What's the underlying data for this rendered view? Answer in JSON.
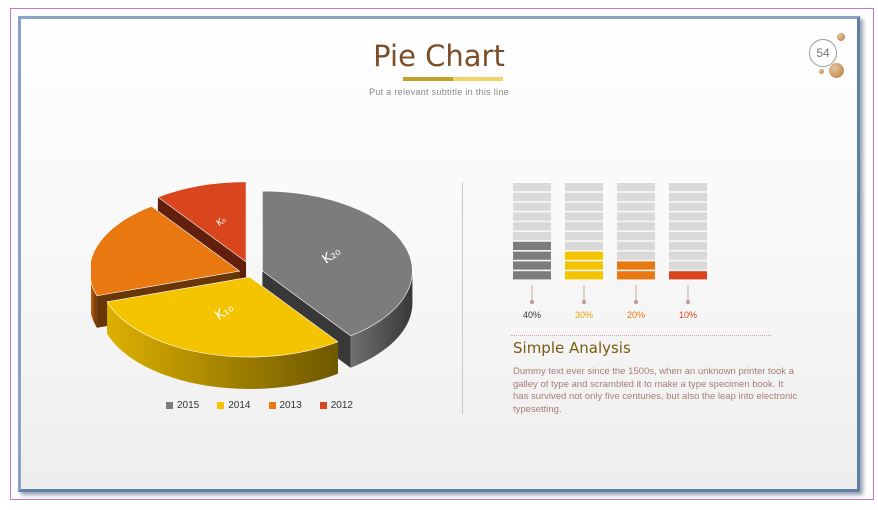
{
  "page": {
    "title": "Pie Chart",
    "subtitle": "Put a relevant subtitle in this line",
    "page_number": "54",
    "analysis_title": "Simple Analysis",
    "analysis_body": "Dummy text ever since the 1500s, when an unknown printer took a galley of type and scrambled it to make a type specimen book. It has survived not only five centuries, but also the leap into electronic typesetting."
  },
  "colors": {
    "accent_gold": "#c2a12a",
    "accent_light": "#f3d46a",
    "title_brown": "#7a4f2a"
  },
  "chart_data": [
    {
      "type": "pie",
      "title": "",
      "style": "3d-exploded",
      "categories": [
        "2015",
        "2014",
        "2013",
        "2012"
      ],
      "values": [
        40,
        30,
        20,
        10
      ],
      "slice_labels": [
        "K₂₀",
        "K₁₀",
        "",
        "K₀"
      ],
      "colors": [
        "#7c7c7c",
        "#f5c400",
        "#e8780f",
        "#d9451c"
      ],
      "legend": {
        "placement": "bottom",
        "entries": [
          {
            "label": "2015",
            "color": "#7c7c7c"
          },
          {
            "label": "2014",
            "color": "#f5c400"
          },
          {
            "label": "2013",
            "color": "#e8780f"
          },
          {
            "label": "2012",
            "color": "#d9451c"
          }
        ]
      }
    },
    {
      "type": "bar",
      "style": "stacked-cells",
      "cells_per_column": 10,
      "categories": [
        "2015",
        "2014",
        "2013",
        "2012"
      ],
      "values": [
        40,
        30,
        20,
        10
      ],
      "value_labels": [
        "40%",
        "30%",
        "20%",
        "10%"
      ],
      "label_colors": [
        "#333333",
        "#e3a400",
        "#e8780f",
        "#d9451c"
      ],
      "colors": [
        "#7c7c7c",
        "#f5c400",
        "#e8780f",
        "#d9451c"
      ],
      "empty_color": "#d9d9d9",
      "ylim": [
        0,
        100
      ]
    }
  ]
}
